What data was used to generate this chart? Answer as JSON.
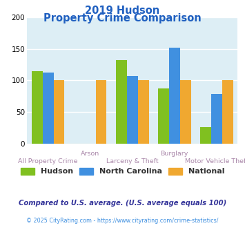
{
  "title_line1": "2019 Hudson",
  "title_line2": "Property Crime Comparison",
  "title_color": "#2060c0",
  "categories": [
    "All Property Crime",
    "Arson",
    "Larceny & Theft",
    "Burglary",
    "Motor Vehicle Theft"
  ],
  "hudson": [
    115,
    0,
    132,
    87,
    26
  ],
  "north_carolina": [
    112,
    0,
    107,
    152,
    78
  ],
  "national": [
    100,
    100,
    100,
    100,
    100
  ],
  "hudson_color": "#80c020",
  "nc_color": "#4090e0",
  "national_color": "#f0a830",
  "bar_width": 0.26,
  "ylim": [
    0,
    200
  ],
  "yticks": [
    0,
    50,
    100,
    150,
    200
  ],
  "bg_color": "#ddeef5",
  "legend_labels": [
    "Hudson",
    "North Carolina",
    "National"
  ],
  "legend_text_color": "#333333",
  "footnote1": "Compared to U.S. average. (U.S. average equals 100)",
  "footnote2": "© 2025 CityRating.com - https://www.cityrating.com/crime-statistics/",
  "footnote1_color": "#333399",
  "footnote2_color": "#4090e0",
  "xlabel_color": "#aa88aa",
  "group_labels_top": [
    "",
    "Arson",
    "",
    "Burglary",
    ""
  ],
  "group_labels_bot": [
    "All Property Crime",
    "",
    "Larceny & Theft",
    "",
    "Motor Vehicle Theft"
  ]
}
